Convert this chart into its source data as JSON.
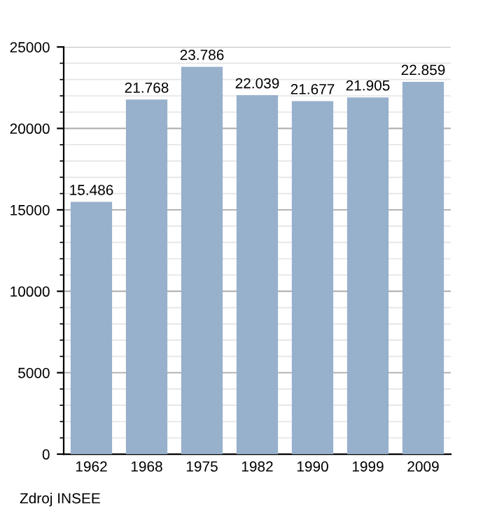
{
  "chart_data": {
    "type": "bar",
    "categories": [
      "1962",
      "1968",
      "1975",
      "1982",
      "1990",
      "1999",
      "2009"
    ],
    "values": [
      15486,
      21768,
      23786,
      22039,
      21677,
      21905,
      22859
    ],
    "value_labels": [
      "15.486",
      "21.768",
      "23.786",
      "22.039",
      "21.677",
      "21.905",
      "22.859"
    ],
    "color": "#97b0cc",
    "ylim": [
      0,
      25000
    ],
    "yticks": [
      0,
      5000,
      10000,
      15000,
      20000,
      25000
    ],
    "grid": "y",
    "annotations": [
      "Zdroj INSEE"
    ]
  }
}
